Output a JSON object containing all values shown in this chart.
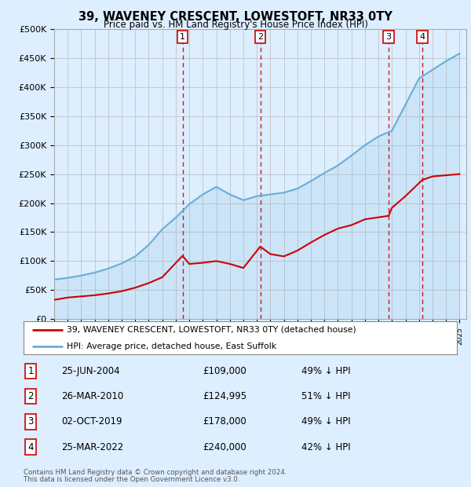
{
  "title": "39, WAVENEY CRESCENT, LOWESTOFT, NR33 0TY",
  "subtitle": "Price paid vs. HM Land Registry's House Price Index (HPI)",
  "footer1": "Contains HM Land Registry data © Crown copyright and database right 2024.",
  "footer2": "This data is licensed under the Open Government Licence v3.0.",
  "legend_line1": "39, WAVENEY CRESCENT, LOWESTOFT, NR33 0TY (detached house)",
  "legend_line2": "HPI: Average price, detached house, East Suffolk",
  "transactions": [
    {
      "label": "1",
      "date": "25-JUN-2004",
      "price": "£109,000",
      "pct": "49% ↓ HPI",
      "year": 2004.5
    },
    {
      "label": "2",
      "date": "26-MAR-2010",
      "price": "£124,995",
      "pct": "51% ↓ HPI",
      "year": 2010.25
    },
    {
      "label": "3",
      "date": "02-OCT-2019",
      "price": "£178,000",
      "pct": "49% ↓ HPI",
      "year": 2019.75
    },
    {
      "label": "4",
      "date": "25-MAR-2022",
      "price": "£240,000",
      "pct": "42% ↓ HPI",
      "year": 2022.25
    }
  ],
  "hpi_years": [
    1995,
    1996,
    1997,
    1998,
    1999,
    2000,
    2001,
    2002,
    2003,
    2004,
    2005,
    2006,
    2007,
    2008,
    2009,
    2010,
    2011,
    2012,
    2013,
    2014,
    2015,
    2016,
    2017,
    2018,
    2019,
    2020,
    2021,
    2022,
    2023,
    2024,
    2025
  ],
  "hpi_values": [
    68000,
    71000,
    75000,
    80000,
    87000,
    96000,
    108000,
    128000,
    155000,
    175000,
    198000,
    215000,
    228000,
    215000,
    205000,
    212000,
    215000,
    218000,
    225000,
    238000,
    252000,
    265000,
    282000,
    300000,
    315000,
    325000,
    370000,
    415000,
    430000,
    445000,
    458000
  ],
  "price_years": [
    1995.5,
    2004.5,
    2010.25,
    2019.75,
    2022.25
  ],
  "price_values": [
    35000,
    109000,
    124995,
    178000,
    240000
  ],
  "hpi_color": "#6baed6",
  "price_color": "#cc0000",
  "vline_color": "#cc0000",
  "bg_color": "#ddeeff",
  "plot_bg": "#ddeeff",
  "ylim": [
    0,
    500000
  ],
  "yticks": [
    0,
    50000,
    100000,
    150000,
    200000,
    250000,
    300000,
    350000,
    400000,
    450000,
    500000
  ],
  "xlim_start": 1995,
  "xlim_end": 2025.5
}
